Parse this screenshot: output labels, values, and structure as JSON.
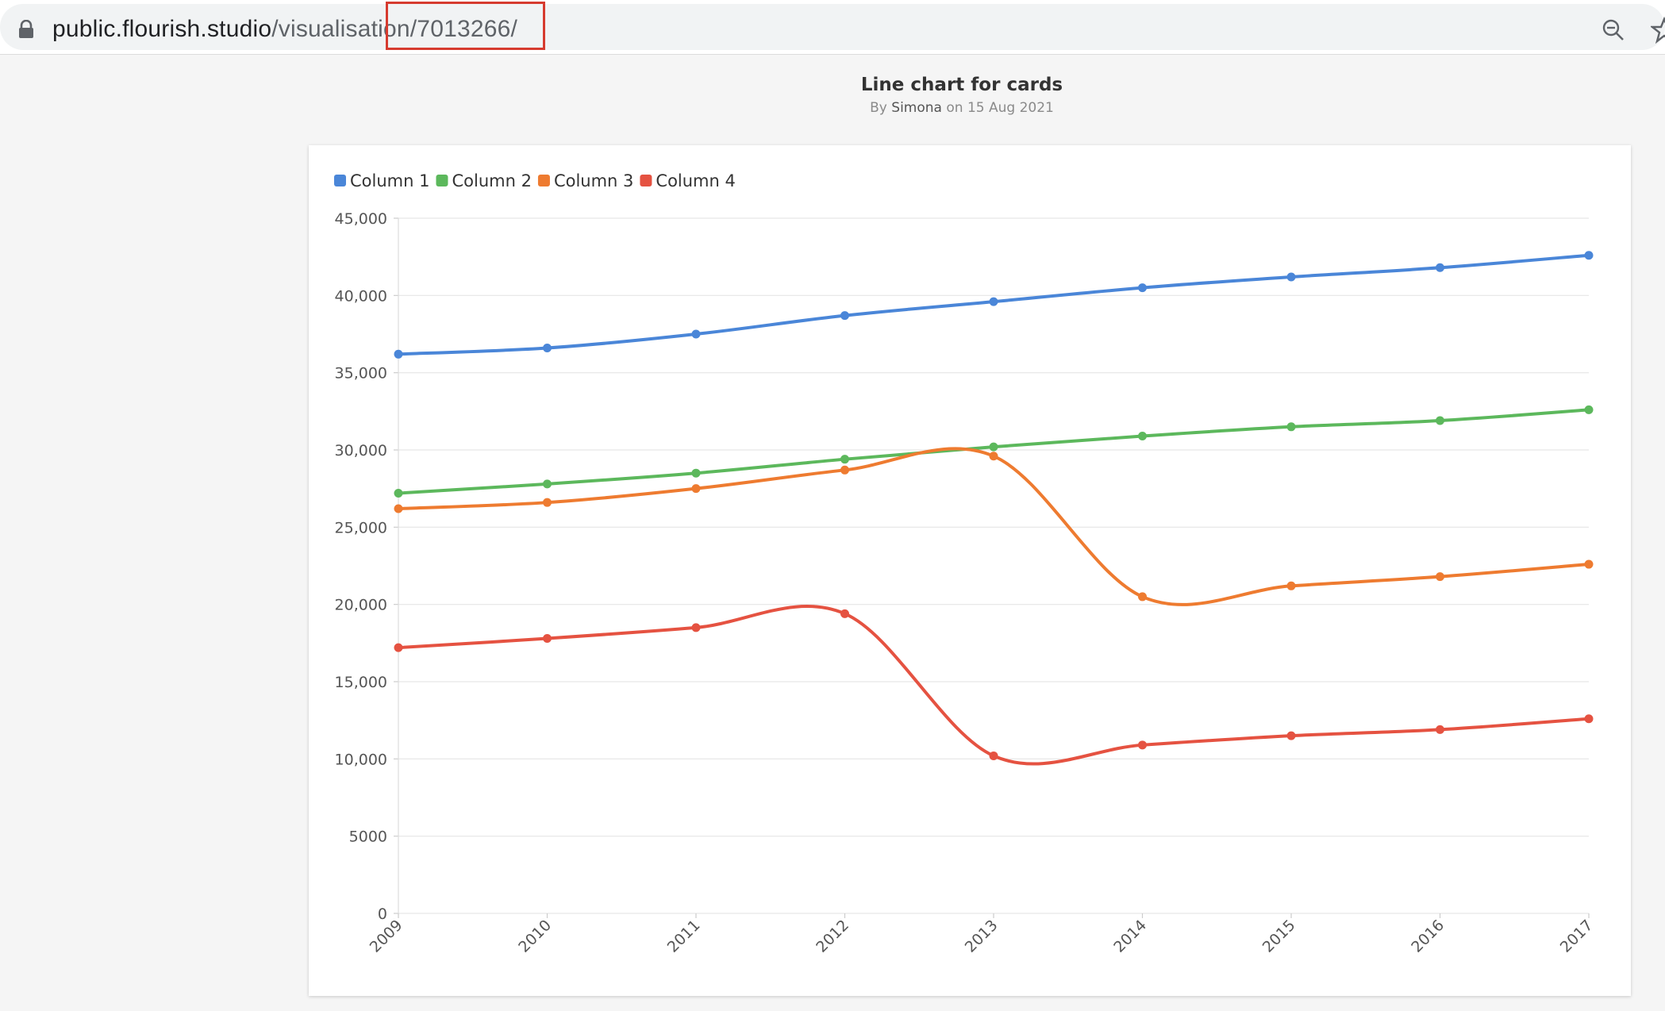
{
  "browser": {
    "url_host": "public.flourish.studio",
    "url_path": "/visualisation/7013266/"
  },
  "visualisation": {
    "title": "Line chart for cards",
    "byline_prefix": "By",
    "author": "Simona",
    "date_text": "on 15 Aug 2021"
  },
  "colors": {
    "highlight": "#d63b2f",
    "grid": "#e6e6e6"
  },
  "chart_data": {
    "type": "line",
    "title": "",
    "xlabel": "",
    "ylabel": "",
    "x": [
      "2009",
      "2010",
      "2011",
      "2012",
      "2013",
      "2014",
      "2015",
      "2016",
      "2017"
    ],
    "ylim": [
      0,
      45000
    ],
    "yticks": [
      0,
      5000,
      10000,
      15000,
      20000,
      25000,
      30000,
      35000,
      40000,
      45000
    ],
    "ytick_labels": [
      "0",
      "5000",
      "10,000",
      "15,000",
      "20,000",
      "25,000",
      "30,000",
      "35,000",
      "40,000",
      "45,000"
    ],
    "grid": true,
    "legend_position": "top-left",
    "series": [
      {
        "name": "Column 1",
        "color": "#4a86d8",
        "values": [
          36200,
          36600,
          37500,
          38700,
          39600,
          40500,
          41200,
          41800,
          42600
        ]
      },
      {
        "name": "Column 2",
        "color": "#5cb85c",
        "values": [
          27200,
          27800,
          28500,
          29400,
          30200,
          30900,
          31500,
          31900,
          32600
        ]
      },
      {
        "name": "Column 3",
        "color": "#ee7b30",
        "values": [
          26200,
          26600,
          27500,
          28700,
          29600,
          20500,
          21200,
          21800,
          22600
        ]
      },
      {
        "name": "Column 4",
        "color": "#e55241",
        "values": [
          17200,
          17800,
          18500,
          19400,
          10200,
          10900,
          11500,
          11900,
          12600
        ]
      }
    ]
  }
}
